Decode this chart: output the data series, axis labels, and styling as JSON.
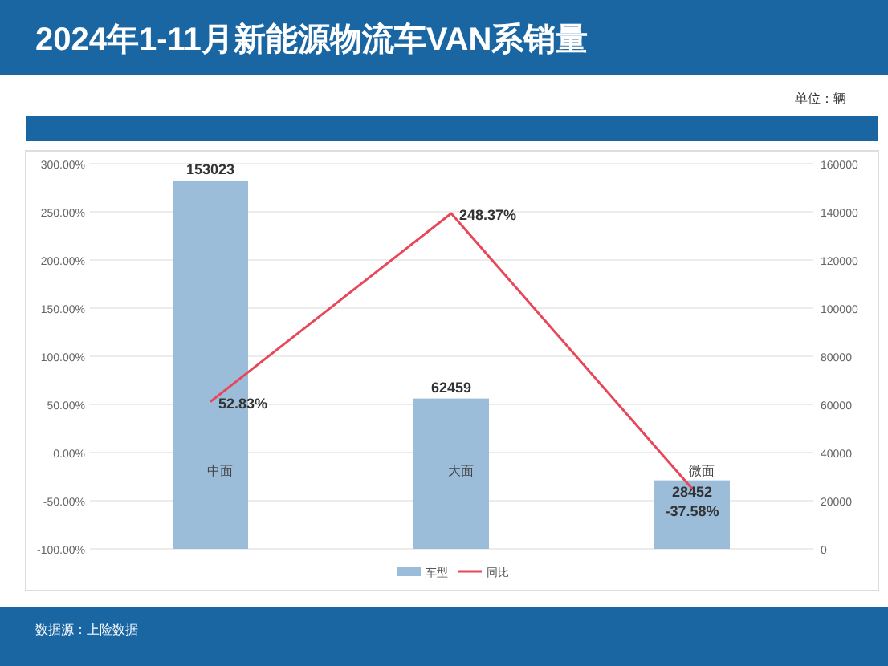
{
  "chart_data": {
    "type": "bar",
    "title": "2024年1-11月新能源物流车VAN系销量",
    "categories": [
      "中面",
      "大面",
      "微面"
    ],
    "series": [
      {
        "name": "车型",
        "axis": "y2",
        "color": "#9bbdd9",
        "values": [
          153023,
          62459,
          28452
        ],
        "value_labels": [
          "153023",
          "62459",
          "28452"
        ]
      },
      {
        "name": "同比",
        "type": "line",
        "axis": "y",
        "color": "#e8475a",
        "values": [
          52.83,
          248.37,
          -37.58
        ],
        "value_labels": [
          "52.83%",
          "248.37%",
          "-37.58%"
        ]
      }
    ],
    "ylim": [
      -100,
      300
    ],
    "yticks": [
      {
        "value": -100,
        "label": "-100.00%"
      },
      {
        "value": -50,
        "label": "-50.00%"
      },
      {
        "value": 0,
        "label": "0.00%"
      },
      {
        "value": 50,
        "label": "50.00%"
      },
      {
        "value": 100,
        "label": "100.00%"
      },
      {
        "value": 150,
        "label": "150.00%"
      },
      {
        "value": 200,
        "label": "200.00%"
      },
      {
        "value": 250,
        "label": "250.00%"
      },
      {
        "value": 300,
        "label": "300.00%"
      }
    ],
    "y2lim": [
      0,
      160000
    ],
    "y2ticks": [
      0,
      20000,
      40000,
      60000,
      80000,
      100000,
      120000,
      140000,
      160000
    ],
    "grid": "y",
    "legend": "bottom",
    "marker": "none",
    "line_style": "solid",
    "annotations": [
      "单位：辆",
      "数据源：上险数据"
    ]
  }
}
